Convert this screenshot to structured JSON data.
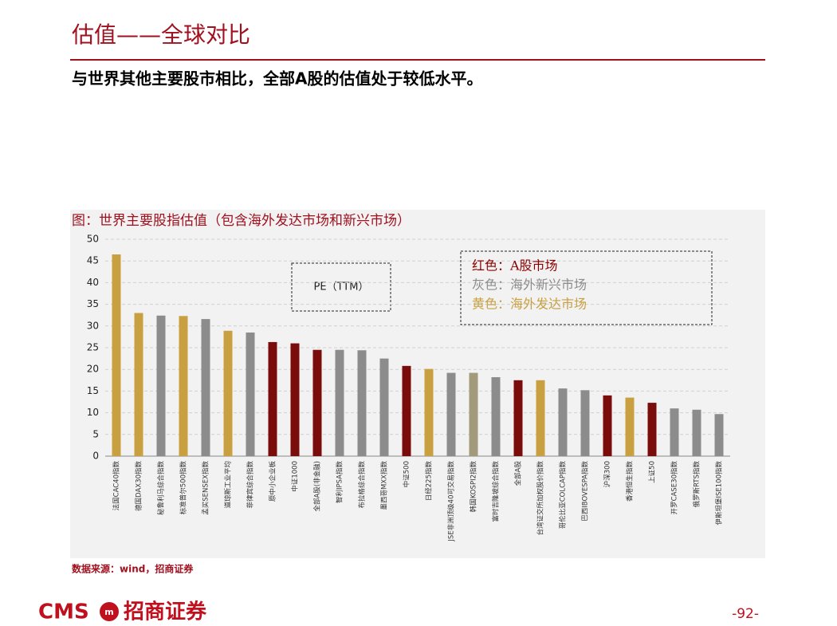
{
  "header": {
    "title": "估值——全球对比",
    "subtitle": "与世界其他主要股市相比，全部A股的估值处于较低水平。"
  },
  "chart_data": {
    "type": "bar",
    "title": "图：世界主要股指估值（包含海外发达市场和新兴市场）",
    "categories": [
      "法国CAC40指数",
      "德国DAX30指数",
      "秘鲁利马综合指数",
      "标准普尔500指数",
      "孟买SENSEX指数",
      "道琼斯工业平均",
      "菲律宾综合指数",
      "原中小企业板",
      "中证1000",
      "全部A股(非金融)",
      "智利IPSA指数",
      "布拉格综合指数",
      "墨西哥MXX指数",
      "中证500",
      "日经225指数",
      "JSE非洲顶级40可交易指数",
      "韩国KOSPI2指数",
      "富时吉隆坡综合指数",
      "全部A股",
      "台湾证交所加权股价指数",
      "哥伦比亚COLCAP指数",
      "巴西IBOVESPA指数",
      "沪深300",
      "香港恒生指数",
      "上证50",
      "开罗CASE30指数",
      "俄罗斯RTS指数",
      "伊斯坦堡ISE100指数"
    ],
    "values": [
      46.5,
      33,
      32.4,
      32.3,
      31.6,
      28.9,
      28.5,
      26.3,
      26,
      24.5,
      24.5,
      24.4,
      22.5,
      20.8,
      20.1,
      19.2,
      19.2,
      18.2,
      17.5,
      17.5,
      15.6,
      15.2,
      14,
      13.5,
      12.3,
      11,
      10.7,
      9.7
    ],
    "colors": [
      "#c8a040",
      "#c8a040",
      "#8c8c8c",
      "#c8a040",
      "#8c8c8c",
      "#c8a040",
      "#8c8c8c",
      "#7a0c0c",
      "#7a0c0c",
      "#7a0c0c",
      "#8c8c8c",
      "#8c8c8c",
      "#8c8c8c",
      "#7a0c0c",
      "#c8a040",
      "#8c8c8c",
      "#a39a7c",
      "#8c8c8c",
      "#7a0c0c",
      "#c8a040",
      "#8c8c8c",
      "#8c8c8c",
      "#7a0c0c",
      "#c8a040",
      "#7a0c0c",
      "#8c8c8c",
      "#8c8c8c",
      "#8c8c8c"
    ],
    "ylim": [
      0,
      50
    ],
    "yticks": [
      0,
      5,
      10,
      15,
      20,
      25,
      30,
      35,
      40,
      45,
      50
    ],
    "grid": true,
    "annotation": "PE（TTM）",
    "legend": [
      {
        "label": "红色：A股市场",
        "color": "#8b0000"
      },
      {
        "label": "灰色：海外新兴市场",
        "color": "#8c8c8c"
      },
      {
        "label": "黄色：海外发达市场",
        "color": "#c8a040"
      }
    ],
    "source": "数据来源：wind，招商证券"
  },
  "footer": {
    "logo_latin": "CMS",
    "logo_chinese": "招商证券",
    "page": "-92-"
  }
}
